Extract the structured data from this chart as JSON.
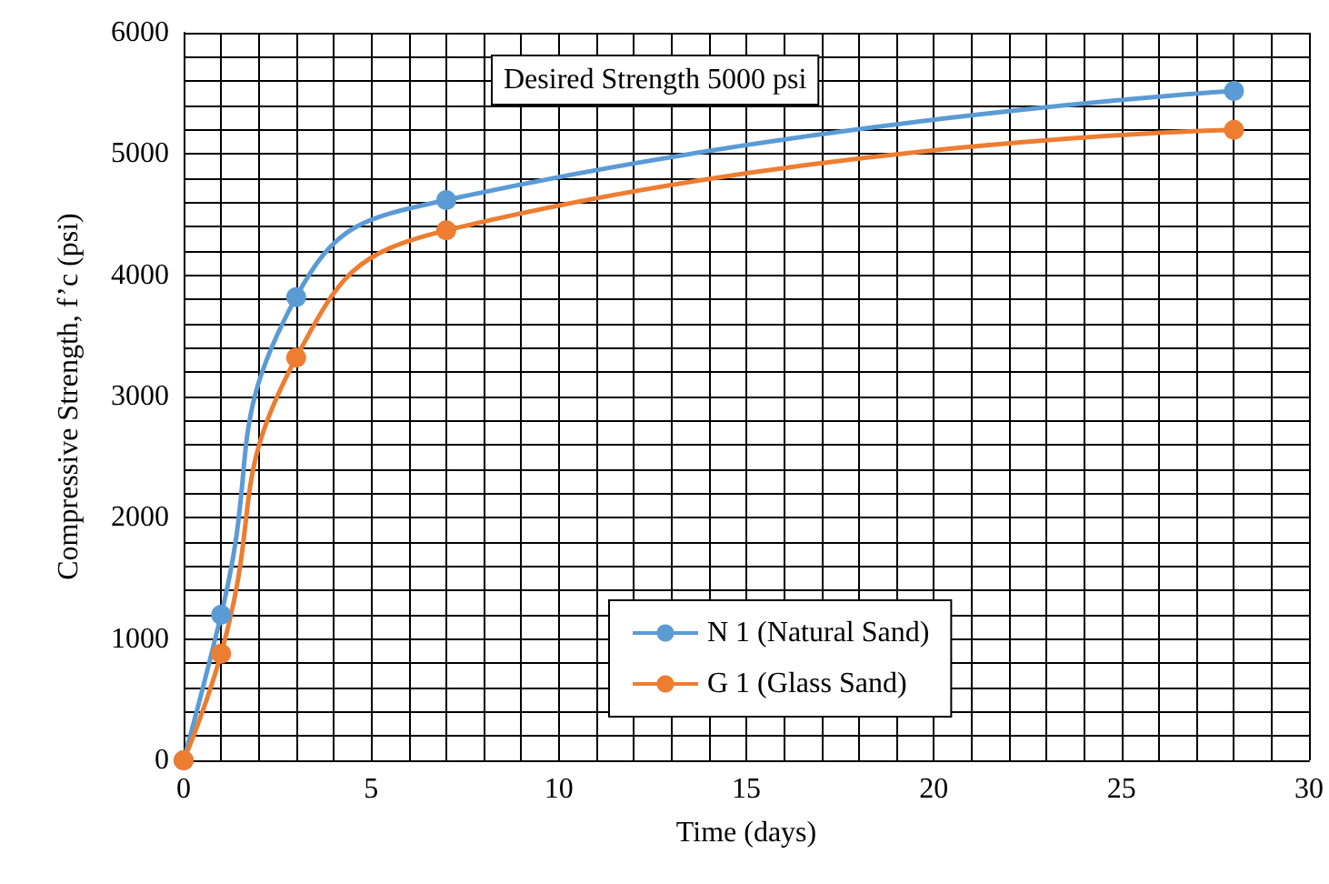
{
  "chart_data": {
    "type": "line",
    "xlabel": "Time (days)",
    "ylabel": "Compressive Strength, f’c (psi)",
    "annotations": [
      "Desired Strength 5000 psi"
    ],
    "series": [
      {
        "name": "N 1 (Natural Sand)",
        "color": "#5b9bd5",
        "x": [
          0,
          1,
          3,
          7,
          28
        ],
        "values": [
          0,
          1200,
          3820,
          4620,
          5520
        ]
      },
      {
        "name": "G 1 (Glass Sand)",
        "color": "#ed7d31",
        "x": [
          0,
          1,
          3,
          7,
          28
        ],
        "values": [
          0,
          880,
          3320,
          4370,
          5200
        ]
      }
    ],
    "xlim": [
      0,
      30
    ],
    "xticks": [
      0,
      5,
      10,
      15,
      20,
      25,
      30
    ],
    "ylim": [
      0,
      6000
    ],
    "yticks": [
      0,
      1000,
      2000,
      3000,
      4000,
      5000,
      6000
    ],
    "grid": true,
    "legend": "bottom",
    "marker": "circle",
    "line_style": "solid"
  }
}
